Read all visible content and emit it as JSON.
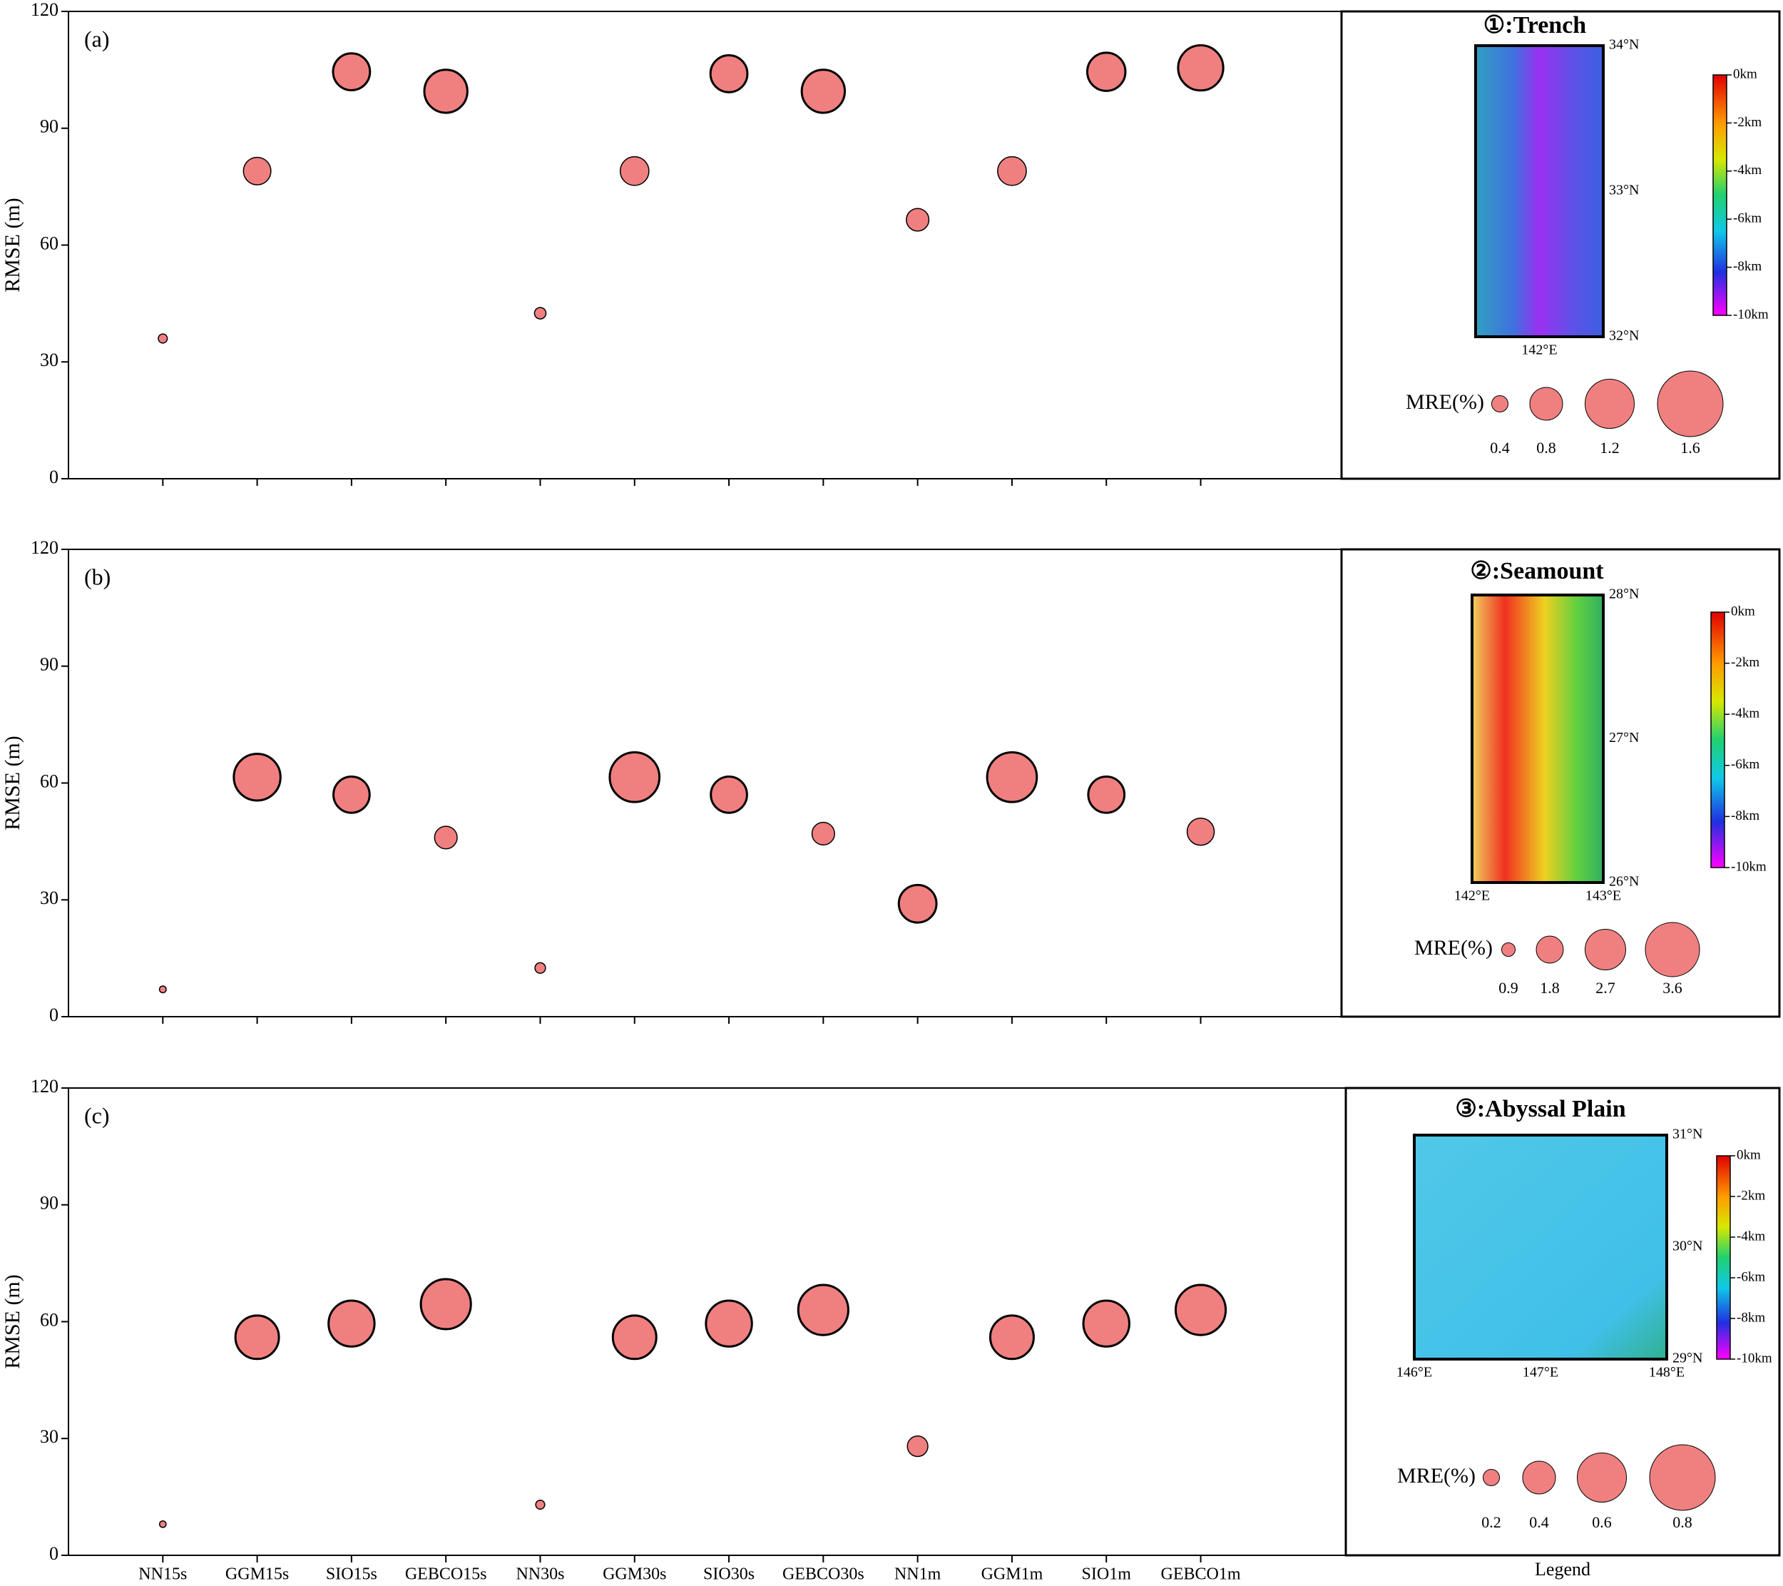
{
  "chart_data": [
    {
      "type": "bubble",
      "panel_label": "(a)",
      "y_label": "RMSE (m)",
      "ylim": [
        0,
        120
      ],
      "yticks": [
        0,
        30,
        60,
        90,
        120
      ],
      "color": "#f08080",
      "values": [
        36,
        79,
        104.5,
        99.5,
        42.5,
        79,
        104,
        99.5,
        66.5,
        79,
        104.5,
        105.5
      ],
      "sizes": [
        0.22,
        0.67,
        0.9,
        1.05,
        0.28,
        0.7,
        0.9,
        1.05,
        0.55,
        0.7,
        0.93,
        1.1
      ],
      "size_legend": {
        "label": "MRE(%)",
        "values": [
          0.4,
          0.8,
          1.2,
          1.6
        ]
      },
      "inset": {
        "title": "①:Trench",
        "lat_labels": [
          "34°N",
          "33°N",
          "32°N"
        ],
        "lon_labels": [
          "142°E"
        ],
        "colorbar_labels": [
          "0km",
          "-2km",
          "-4km",
          "-6km",
          "-8km",
          "-10km"
        ]
      }
    },
    {
      "type": "bubble",
      "panel_label": "(b)",
      "y_label": "RMSE (m)",
      "ylim": [
        0,
        120
      ],
      "yticks": [
        0,
        30,
        60,
        90,
        120
      ],
      "color": "#f08080",
      "values": [
        7,
        61.5,
        57,
        46,
        12.5,
        61.5,
        57,
        47,
        29,
        61.5,
        57,
        47.5
      ],
      "sizes": [
        0.45,
        3.1,
        2.4,
        1.5,
        0.7,
        3.3,
        2.4,
        1.5,
        2.5,
        3.3,
        2.4,
        1.8
      ],
      "size_legend": {
        "label": "MRE(%)",
        "values": [
          0.9,
          1.8,
          2.7,
          3.6
        ]
      },
      "inset": {
        "title": "②:Seamount",
        "lat_labels": [
          "28°N",
          "27°N",
          "26°N"
        ],
        "lon_labels": [
          "142°E",
          "143°E"
        ],
        "colorbar_labels": [
          "0km",
          "-2km",
          "-4km",
          "-6km",
          "-8km",
          "-10km"
        ]
      }
    },
    {
      "type": "bubble",
      "panel_label": "(c)",
      "y_label": "RMSE (m)",
      "ylim": [
        0,
        120
      ],
      "yticks": [
        0,
        30,
        60,
        90,
        120
      ],
      "color": "#f08080",
      "categories": [
        "NN15s",
        "GGM15s",
        "SIO15s",
        "GEBCO15s",
        "NN30s",
        "GGM30s",
        "SIO30s",
        "GEBCO30s",
        "NN1m",
        "GGM1m",
        "SIO1m",
        "GEBCO1m"
      ],
      "values": [
        8,
        56,
        59.5,
        64.5,
        13,
        56,
        59.5,
        63,
        28,
        56,
        59.5,
        63
      ],
      "sizes": [
        0.08,
        0.53,
        0.56,
        0.61,
        0.11,
        0.53,
        0.56,
        0.61,
        0.25,
        0.53,
        0.56,
        0.61
      ],
      "size_legend": {
        "label": "MRE(%)",
        "values": [
          0.2,
          0.4,
          0.6,
          0.8
        ]
      },
      "inset": {
        "title": "③:Abyssal Plain",
        "lat_labels": [
          "31°N",
          "30°N",
          "29°N"
        ],
        "lon_labels": [
          "146°E",
          "147°E",
          "148°E"
        ],
        "colorbar_labels": [
          "0km",
          "-2km",
          "-4km",
          "-6km",
          "-8km",
          "-10km"
        ]
      },
      "legend_caption": "Legend"
    }
  ]
}
